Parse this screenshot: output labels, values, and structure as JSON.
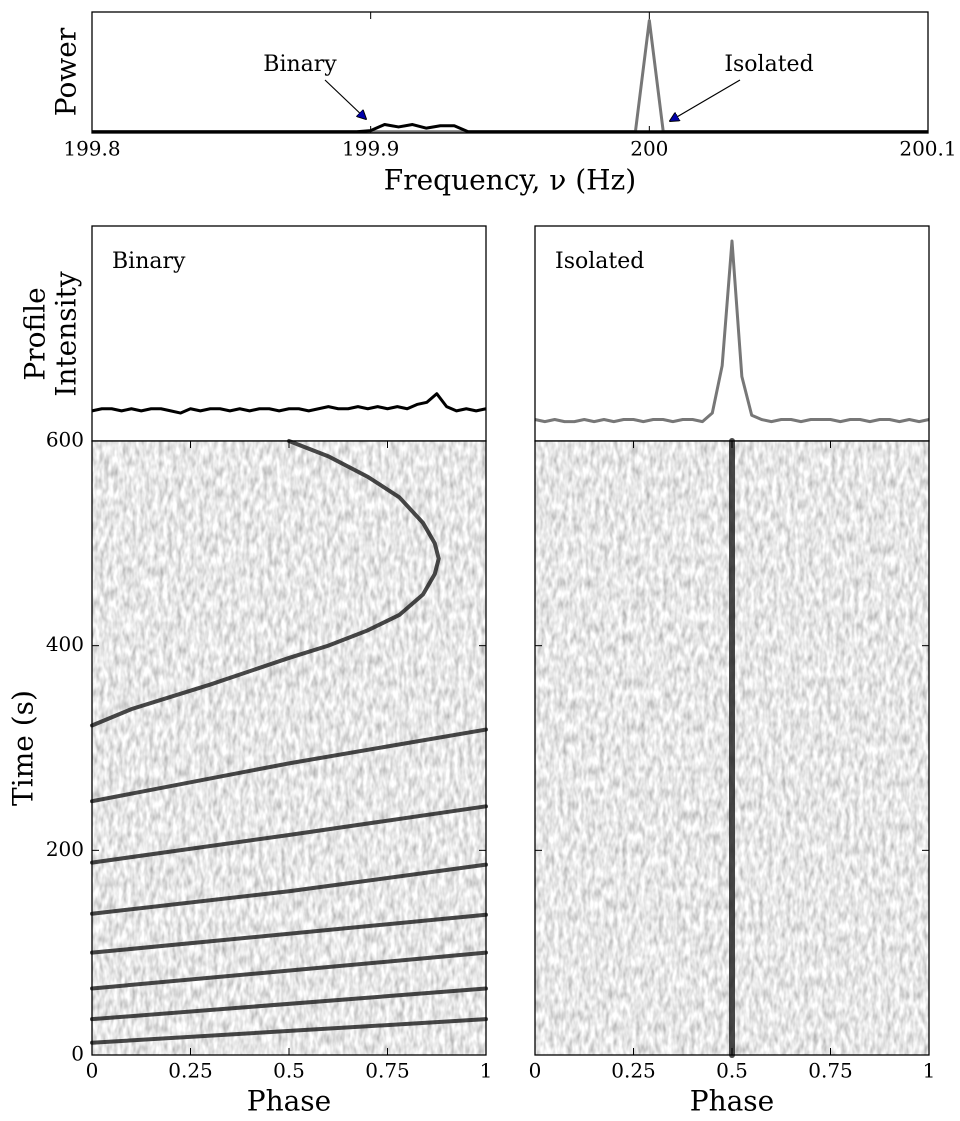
{
  "chart_data": [
    {
      "type": "line",
      "ylabel": "Power",
      "xlabel": "Frequency, ν (Hz)",
      "xlim": [
        199.8,
        200.1
      ],
      "xticks": [
        199.8,
        199.9,
        200,
        200.1
      ],
      "ylim": [
        0,
        1
      ],
      "annotations": [
        "Binary",
        "Isolated"
      ],
      "x": [
        199.8,
        199.805,
        199.81,
        199.815,
        199.82,
        199.825,
        199.83,
        199.835,
        199.84,
        199.845,
        199.85,
        199.855,
        199.86,
        199.865,
        199.87,
        199.875,
        199.88,
        199.885,
        199.89,
        199.895,
        199.9,
        199.905,
        199.91,
        199.915,
        199.92,
        199.925,
        199.93,
        199.935,
        199.94,
        199.945,
        199.95,
        199.955,
        199.96,
        199.965,
        199.97,
        199.975,
        199.98,
        199.985,
        199.99,
        199.995,
        200,
        200.005,
        200.01,
        200.015,
        200.02,
        200.025,
        200.03,
        200.035,
        200.04,
        200.045,
        200.05,
        200.055,
        200.06,
        200.065,
        200.07,
        200.075,
        200.08,
        200.085,
        200.09,
        200.095,
        200.1
      ],
      "series": [
        {
          "color": "#777777",
          "values": [
            0.01,
            0.01,
            0.01,
            0.01,
            0.01,
            0.01,
            0.01,
            0.01,
            0.01,
            0.01,
            0.01,
            0.01,
            0.01,
            0.01,
            0.01,
            0.01,
            0.01,
            0.01,
            0.01,
            0.01,
            0.01,
            0.01,
            0.01,
            0.01,
            0.01,
            0.01,
            0.01,
            0.01,
            0.01,
            0.01,
            0.01,
            0.01,
            0.01,
            0.01,
            0.01,
            0.01,
            0.01,
            0.01,
            0.01,
            0.01,
            0.93,
            0.01,
            0.01,
            0.01,
            0.01,
            0.01,
            0.01,
            0.01,
            0.01,
            0.01,
            0.01,
            0.01,
            0.01,
            0.01,
            0.01,
            0.01,
            0.01,
            0.01,
            0.01,
            0.01,
            0.01
          ]
        },
        {
          "color": "#000000",
          "values": [
            0.01,
            0.01,
            0.01,
            0.01,
            0.01,
            0.01,
            0.01,
            0.01,
            0.01,
            0.01,
            0.01,
            0.01,
            0.01,
            0.01,
            0.01,
            0.01,
            0.01,
            0.01,
            0.01,
            0.01,
            0.02,
            0.07,
            0.05,
            0.07,
            0.04,
            0.06,
            0.06,
            0.01,
            0.01,
            0.01,
            0.01,
            0.01,
            0.01,
            0.01,
            0.01,
            0.01,
            0.01,
            0.01,
            0.01,
            0.01,
            0.01,
            0.01,
            0.01,
            0.01,
            0.01,
            0.01,
            0.01,
            0.01,
            0.01,
            0.01,
            0.01,
            0.01,
            0.01,
            0.01,
            0.01,
            0.01,
            0.01,
            0.01,
            0.01,
            0.01,
            0.01
          ]
        }
      ]
    },
    {
      "type": "pulsar",
      "label": "Binary",
      "ylabel": [
        "Profile",
        "Intensity"
      ],
      "profile": {
        "color": "#000000",
        "ylim": [
          0,
          1
        ],
        "x": [
          0,
          0.025,
          0.05,
          0.075,
          0.1,
          0.125,
          0.15,
          0.175,
          0.2,
          0.225,
          0.25,
          0.275,
          0.3,
          0.325,
          0.35,
          0.375,
          0.4,
          0.425,
          0.45,
          0.475,
          0.5,
          0.525,
          0.55,
          0.575,
          0.6,
          0.625,
          0.65,
          0.675,
          0.7,
          0.725,
          0.75,
          0.775,
          0.8,
          0.825,
          0.85,
          0.875,
          0.9,
          0.925,
          0.95,
          0.975,
          1
        ],
        "values": [
          0.14,
          0.15,
          0.15,
          0.14,
          0.15,
          0.14,
          0.15,
          0.15,
          0.14,
          0.13,
          0.15,
          0.14,
          0.15,
          0.15,
          0.14,
          0.15,
          0.14,
          0.15,
          0.15,
          0.14,
          0.15,
          0.15,
          0.14,
          0.15,
          0.16,
          0.15,
          0.15,
          0.16,
          0.15,
          0.16,
          0.15,
          0.16,
          0.15,
          0.17,
          0.18,
          0.22,
          0.16,
          0.14,
          0.15,
          0.14,
          0.15
        ]
      },
      "waterfall": {
        "xlabel": "Phase",
        "ylabel": "Time (s)",
        "xlim": [
          0,
          1
        ],
        "xticks": [
          0,
          0.25,
          0.5,
          0.75,
          1
        ],
        "ylim": [
          0,
          600
        ],
        "yticks": [
          0,
          200,
          400,
          600
        ],
        "track": {
          "phase": [
            0.5,
            0.6,
            0.7,
            0.78,
            0.84,
            0.87,
            0.88,
            0.87,
            0.84,
            0.78,
            0.7,
            0.6,
            0.5,
            0.4,
            0.3,
            0.2,
            0.1,
            0,
            null,
            1,
            0.5,
            0,
            null,
            1,
            0.5,
            0,
            null,
            1,
            0.5,
            0,
            null,
            1,
            0,
            null,
            1,
            0,
            null,
            1,
            0,
            null,
            1,
            0
          ],
          "time": [
            600,
            585,
            565,
            545,
            520,
            500,
            485,
            470,
            450,
            430,
            415,
            400,
            388,
            375,
            362,
            350,
            338,
            322,
            null,
            318,
            285,
            248,
            null,
            243,
            215,
            188,
            null,
            186,
            160,
            138,
            null,
            137,
            100,
            null,
            100,
            65,
            null,
            65,
            35,
            null,
            35,
            12
          ]
        }
      }
    },
    {
      "type": "pulsar",
      "label": "Isolated",
      "profile": {
        "color": "#777777",
        "ylim": [
          0,
          1
        ],
        "x": [
          0,
          0.025,
          0.05,
          0.075,
          0.1,
          0.125,
          0.15,
          0.175,
          0.2,
          0.225,
          0.25,
          0.275,
          0.3,
          0.325,
          0.35,
          0.375,
          0.4,
          0.425,
          0.45,
          0.475,
          0.5,
          0.525,
          0.55,
          0.575,
          0.6,
          0.625,
          0.65,
          0.675,
          0.7,
          0.725,
          0.75,
          0.775,
          0.8,
          0.825,
          0.85,
          0.875,
          0.9,
          0.925,
          0.95,
          0.975,
          1
        ],
        "values": [
          0.1,
          0.09,
          0.1,
          0.09,
          0.09,
          0.1,
          0.09,
          0.1,
          0.09,
          0.1,
          0.1,
          0.09,
          0.1,
          0.1,
          0.09,
          0.1,
          0.1,
          0.09,
          0.13,
          0.35,
          0.93,
          0.3,
          0.12,
          0.1,
          0.09,
          0.1,
          0.1,
          0.09,
          0.1,
          0.1,
          0.1,
          0.09,
          0.1,
          0.1,
          0.09,
          0.1,
          0.1,
          0.09,
          0.1,
          0.09,
          0.1
        ]
      },
      "waterfall": {
        "xlabel": "Phase",
        "xlim": [
          0,
          1
        ],
        "xticks": [
          0,
          0.25,
          0.5,
          0.75,
          1
        ],
        "ylim": [
          0,
          600
        ],
        "track": {
          "phase": [
            0.5,
            0.5
          ],
          "time": [
            0,
            600
          ]
        }
      }
    }
  ]
}
